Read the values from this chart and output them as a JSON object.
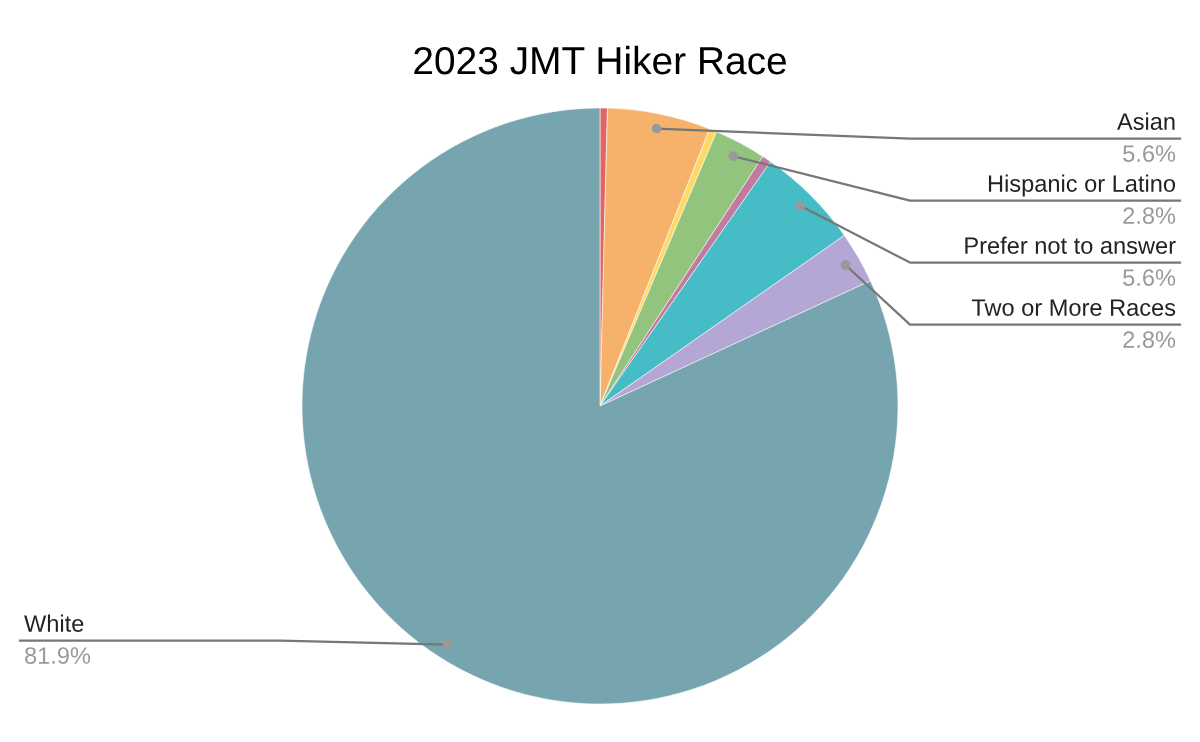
{
  "chart_data": {
    "type": "pie",
    "title": "2023 JMT Hiker Race",
    "categories": [
      null,
      "Asian",
      null,
      "Hispanic or Latino",
      null,
      "Prefer not to answer",
      "Two or More Races",
      "White"
    ],
    "values": [
      0.4,
      5.6,
      0.4,
      2.8,
      0.5,
      5.6,
      2.8,
      81.9
    ],
    "value_labels": [
      null,
      "5.6%",
      null,
      "2.8%",
      null,
      "5.6%",
      "2.8%",
      "81.9%"
    ],
    "colors": [
      "#e06666",
      "#f6b26b",
      "#ffd966",
      "#93c47d",
      "#c27ba0",
      "#46bdc6",
      "#b4a7d6",
      "#76a5af"
    ]
  }
}
